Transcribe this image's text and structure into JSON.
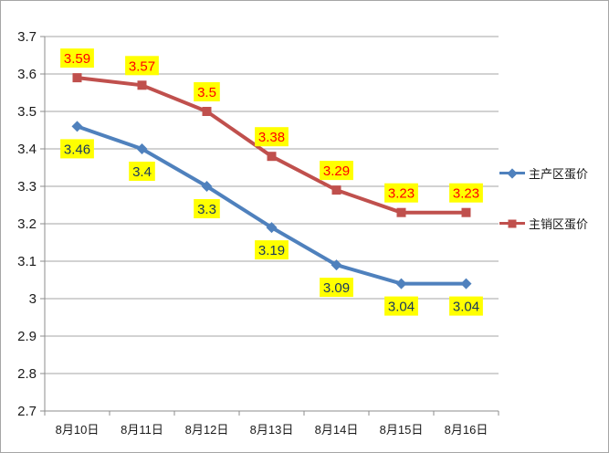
{
  "chart_data": {
    "type": "line",
    "title": "",
    "categories": [
      "8月10日",
      "8月11日",
      "8月12日",
      "8月13日",
      "8月14日",
      "8月15日",
      "8月16日"
    ],
    "series": [
      {
        "name": "主产区蛋价",
        "values": [
          3.46,
          3.4,
          3.3,
          3.19,
          3.09,
          3.04,
          3.04
        ],
        "labels": [
          "3.46",
          "3.4",
          "3.3",
          "3.19",
          "3.09",
          "3.04",
          "3.04"
        ],
        "color": "#4F81BD",
        "marker": "diamond",
        "label_text_color": "#17375E",
        "label_position": "below"
      },
      {
        "name": "主销区蛋价",
        "values": [
          3.59,
          3.57,
          3.5,
          3.38,
          3.29,
          3.23,
          3.23
        ],
        "labels": [
          "3.59",
          "3.57",
          "3.5",
          "3.38",
          "3.29",
          "3.23",
          "3.23"
        ],
        "color": "#C0504D",
        "marker": "square",
        "label_text_color": "#FF0000",
        "label_position": "above"
      }
    ],
    "ylim": [
      2.7,
      3.7
    ],
    "yticks": [
      {
        "value": 3.7,
        "label": "3.7"
      },
      {
        "value": 3.6,
        "label": "3.6"
      },
      {
        "value": 3.5,
        "label": "3.5"
      },
      {
        "value": 3.4,
        "label": "3.4"
      },
      {
        "value": 3.3,
        "label": "3.3"
      },
      {
        "value": 3.2,
        "label": "3.2"
      },
      {
        "value": 3.1,
        "label": "3.1"
      },
      {
        "value": 3.0,
        "label": "3"
      },
      {
        "value": 2.9,
        "label": "2.9"
      },
      {
        "value": 2.8,
        "label": "2.8"
      },
      {
        "value": 2.7,
        "label": "2.7"
      }
    ],
    "grid": true,
    "legend_position": "right",
    "label_bg_color": "#FFFF00",
    "gridline_color": "#A6A6A6",
    "axis_color": "#8C8C8C",
    "axis_text_color": "#1A1A1A"
  }
}
